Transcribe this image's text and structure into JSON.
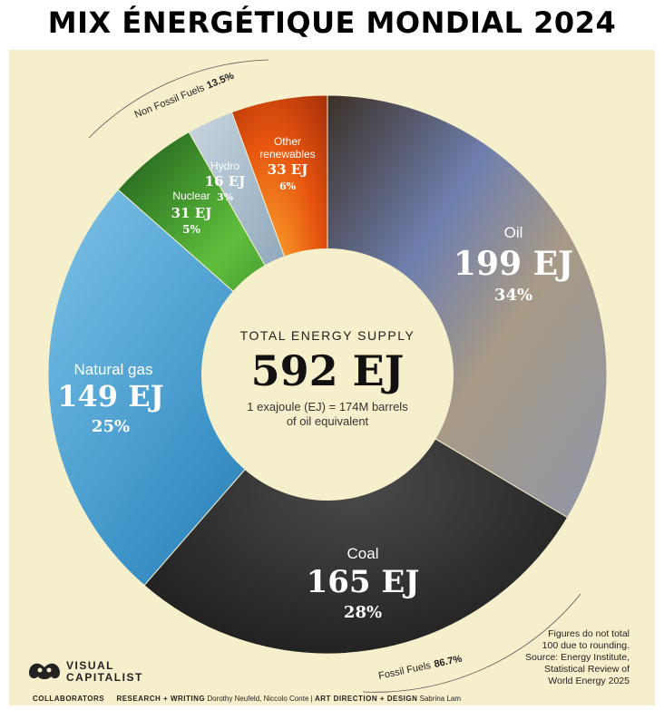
{
  "title": "MIX ÉNERGÉTIQUE MONDIAL 2024",
  "chart_data": {
    "type": "pie",
    "style": "donut",
    "slices": [
      {
        "label": "Oil",
        "value_text": "199 EJ",
        "pct_text": "34%",
        "value": 199,
        "color": "#8a8f9e"
      },
      {
        "label": "Coal",
        "value_text": "165 EJ",
        "pct_text": "28%",
        "value": 165,
        "color": "#2c2c2c"
      },
      {
        "label": "Natural gas",
        "value_text": "149 EJ",
        "pct_text": "25%",
        "value": 149,
        "color": "#4a9fd0"
      },
      {
        "label": "Nuclear",
        "value_text": "31 EJ",
        "pct_text": "5%",
        "value": 31,
        "color": "#2f8f2f"
      },
      {
        "label": "Hydro",
        "value_text": "16 EJ",
        "pct_text": "3%",
        "value": 16,
        "color": "#9ab0c4"
      },
      {
        "label": "Other renewables",
        "value_text": "33 EJ",
        "pct_text": "6%",
        "value": 33,
        "color": "#e2560f"
      }
    ],
    "groups": [
      {
        "label": "Non Fossil Fuels",
        "pct_text": "13.5%"
      },
      {
        "label": "Fossil Fuels",
        "pct_text": "86.7%"
      }
    ],
    "center": {
      "heading": "TOTAL ENERGY SUPPLY",
      "total": "592 EJ",
      "note_line1": "1 exajoule (EJ) = 174M barrels",
      "note_line2": "of oil equivalent"
    }
  },
  "footnote": {
    "line1": "Figures do not total",
    "line2": "100 due to rounding.",
    "line3": "Source: Energy Institute,",
    "line4": "Statistical Review of",
    "line5": "World Energy 2025"
  },
  "logo": {
    "line1": "VISUAL",
    "line2": "CAPITALIST"
  },
  "credits": {
    "collaborators": "COLLABORATORS",
    "research_label": "RESEARCH + WRITING",
    "research_names": "Dorothy Neufeld, Niccolo Conte",
    "separator": "|",
    "art_label": "ART DIRECTION + DESIGN",
    "art_names": "Sabrina Lam"
  }
}
